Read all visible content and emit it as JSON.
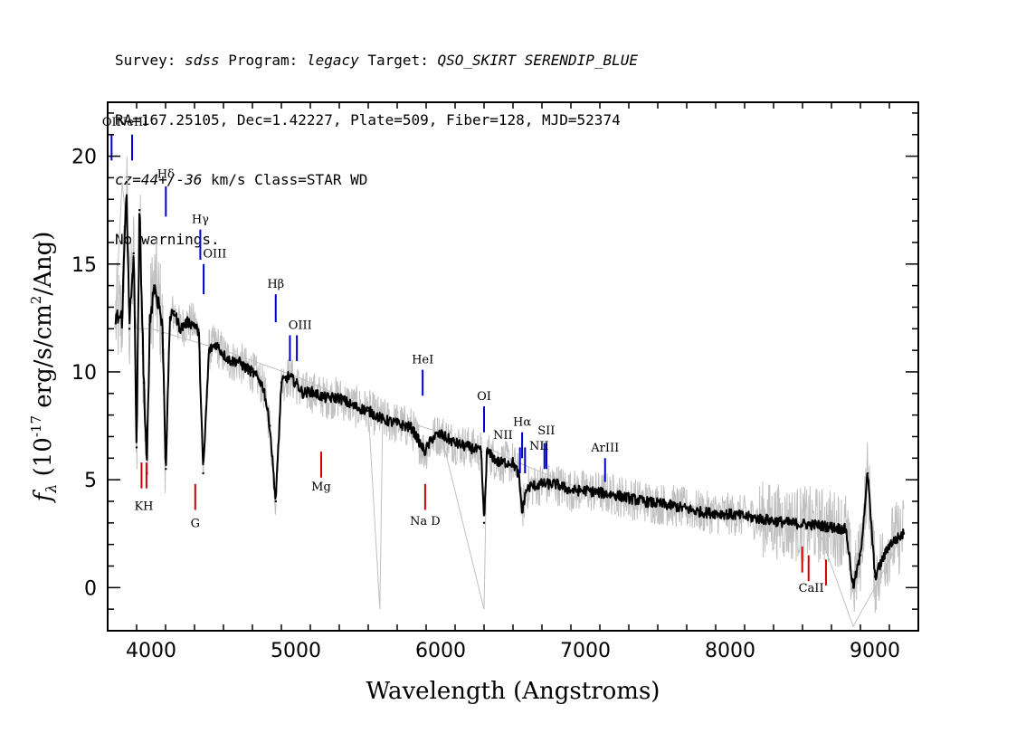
{
  "header": {
    "line1": {
      "survey_label": "Survey:",
      "survey": "sdss",
      "program_label": "Program:",
      "program": "legacy",
      "target_label": "Target:",
      "target": "QSO_SKIRT SERENDIP_BLUE"
    },
    "line2": "RA=167.25105, Dec=1.42227, Plate=509, Fiber=128, MJD=52374",
    "line3": {
      "cz": "cz=44+/-36",
      "rest": " km/s Class=STAR WD"
    },
    "line4": "No warnings."
  },
  "chart_data": {
    "type": "line",
    "xlabel": "Wavelength (Angstroms)",
    "ylabel": "f_λ (10^-17 erg/s/cm^2/Ang)",
    "xlim": [
      3700,
      9300
    ],
    "ylim": [
      -2,
      22.5
    ],
    "x_ticks": [
      4000,
      5000,
      6000,
      7000,
      8000,
      9000
    ],
    "y_ticks": [
      0,
      5,
      10,
      15,
      20
    ],
    "colors": {
      "spectrum": "#000000",
      "noise": "#c0c0c0",
      "emission": "#0000cc",
      "absorption": "#cc0000"
    },
    "series": [
      {
        "style": "thick-black",
        "x": [
          3800,
          3830,
          3850,
          3880,
          3900,
          3920,
          3950,
          3970,
          3990,
          4020,
          4060,
          4080,
          4102,
          4130,
          4160,
          4200,
          4250,
          4300,
          4330,
          4360,
          4400,
          4450,
          4500,
          4550,
          4600,
          4650,
          4700,
          4750,
          4780,
          4820,
          4861,
          4900,
          4950,
          5000,
          5050,
          5100,
          5200,
          5300,
          5400,
          5500,
          5600,
          5700,
          5800,
          5890,
          5950,
          6000,
          6100,
          6200,
          6280,
          6300,
          6320,
          6400,
          6500,
          6540,
          6563,
          6590,
          6620,
          6700,
          6800,
          6900,
          7000,
          7200,
          7400,
          7600,
          7800,
          8000,
          8200,
          8400,
          8600,
          8800,
          8850,
          8900,
          8950,
          9000,
          9100,
          9200
        ],
        "y": [
          12.5,
          18.8,
          12.0,
          15.5,
          6.5,
          17.5,
          9.5,
          5.3,
          12.2,
          14.0,
          13.0,
          11.8,
          5.5,
          12.5,
          12.8,
          12.0,
          12.3,
          12.2,
          11.8,
          5.3,
          11.0,
          11.3,
          10.8,
          10.5,
          10.5,
          10.2,
          10.0,
          9.6,
          9.2,
          7.5,
          4.0,
          9.5,
          9.8,
          9.5,
          9.0,
          9.1,
          8.8,
          8.8,
          8.4,
          8.2,
          7.8,
          7.6,
          7.4,
          6.3,
          7.0,
          7.1,
          6.7,
          6.5,
          6.3,
          3.0,
          6.3,
          5.8,
          5.8,
          5.2,
          3.5,
          4.5,
          4.7,
          4.8,
          4.8,
          4.5,
          4.5,
          4.3,
          4.0,
          3.8,
          3.5,
          3.4,
          3.2,
          3.0,
          2.9,
          2.7,
          0.0,
          1.5,
          5.3,
          0.5,
          2.0,
          2.5
        ]
      },
      {
        "style": "thin-gray-noise",
        "x": [
          3750,
          3800,
          3900,
          4000,
          4500,
          5000,
          5500,
          5580,
          5600,
          6000,
          6300,
          6320,
          6500,
          7000,
          8000,
          8600,
          8850,
          9000,
          9200
        ],
        "y": [
          12.0,
          18.8,
          12.0,
          12.0,
          11.0,
          9.8,
          8.3,
          -1.0,
          8.0,
          7.2,
          -1.0,
          6.5,
          5.9,
          4.5,
          3.5,
          2.9,
          -1.8,
          0.0,
          2.6
        ]
      }
    ],
    "emission_lines": [
      {
        "label": "OII",
        "wavelength": 3727,
        "y_top": 21.0,
        "y_bottom": 19.8
      },
      {
        "label": "NeIII",
        "wavelength": 3869,
        "y_top": 21.0,
        "y_bottom": 19.8
      },
      {
        "label": "Hδ",
        "wavelength": 4102,
        "y_top": 18.6,
        "y_bottom": 17.2
      },
      {
        "label": "Hγ",
        "wavelength": 4340,
        "y_top": 16.6,
        "y_bottom": 15.2
      },
      {
        "label": "OIII",
        "wavelength": 4363,
        "y_top": 15.0,
        "y_bottom": 13.6
      },
      {
        "label": "Hβ",
        "wavelength": 4861,
        "y_top": 13.6,
        "y_bottom": 12.3
      },
      {
        "label": "OIII",
        "wavelength": 4959,
        "y_top": 11.7,
        "y_bottom": 10.5
      },
      {
        "label": "OIII",
        "wavelength": 5007,
        "y_top": 11.7,
        "y_bottom": 10.5
      },
      {
        "label": "HeI",
        "wavelength": 5876,
        "y_top": 10.1,
        "y_bottom": 8.9
      },
      {
        "label": "OI",
        "wavelength": 6300,
        "y_top": 8.4,
        "y_bottom": 7.2
      },
      {
        "label": "NII",
        "wavelength": 6548,
        "y_top": 6.5,
        "y_bottom": 5.3
      },
      {
        "label": "Hα",
        "wavelength": 6563,
        "y_top": 7.2,
        "y_bottom": 6.0
      },
      {
        "label": "NII",
        "wavelength": 6583,
        "y_top": 6.5,
        "y_bottom": 5.3
      },
      {
        "label": "SII",
        "wavelength": 6717,
        "y_top": 6.7,
        "y_bottom": 5.5
      },
      {
        "label": "SII",
        "wavelength": 6731,
        "y_top": 6.7,
        "y_bottom": 5.5
      },
      {
        "label": "ArIII",
        "wavelength": 7136,
        "y_top": 6.0,
        "y_bottom": 4.9
      }
    ],
    "absorption_lines": [
      {
        "label": "K",
        "wavelength": 3934,
        "y_top": 5.8,
        "y_bottom": 4.6
      },
      {
        "label": "H",
        "wavelength": 3968,
        "y_top": 5.8,
        "y_bottom": 4.6
      },
      {
        "label": "G",
        "wavelength": 4305,
        "y_top": 4.8,
        "y_bottom": 3.6
      },
      {
        "label": "Mg",
        "wavelength": 5175,
        "y_top": 6.3,
        "y_bottom": 5.1
      },
      {
        "label": "Na D",
        "wavelength": 5893,
        "y_top": 4.8,
        "y_bottom": 3.6
      },
      {
        "label": "CaII",
        "wavelength": 8498,
        "y_top": 1.9,
        "y_bottom": 0.7
      },
      {
        "label": "CaII",
        "wavelength": 8542,
        "y_top": 1.5,
        "y_bottom": 0.3
      },
      {
        "label": "CaII",
        "wavelength": 8662,
        "y_top": 1.3,
        "y_bottom": 0.1
      }
    ],
    "line_labels": [
      {
        "text": "OII",
        "wavelength": 3727,
        "y": 21.4,
        "kind": "emission"
      },
      {
        "text": "NeIII",
        "wavelength": 3869,
        "y": 21.4,
        "kind": "emission"
      },
      {
        "text": "Hδ",
        "wavelength": 4102,
        "y": 19.0,
        "kind": "emission"
      },
      {
        "text": "Hγ",
        "wavelength": 4340,
        "y": 16.9,
        "kind": "emission"
      },
      {
        "text": "OIII",
        "wavelength": 4440,
        "y": 15.3,
        "kind": "emission"
      },
      {
        "text": "Hβ",
        "wavelength": 4861,
        "y": 13.9,
        "kind": "emission"
      },
      {
        "text": "OIII",
        "wavelength": 5030,
        "y": 12.0,
        "kind": "emission"
      },
      {
        "text": "HeI",
        "wavelength": 5876,
        "y": 10.4,
        "kind": "emission"
      },
      {
        "text": "OI",
        "wavelength": 6300,
        "y": 8.7,
        "kind": "emission"
      },
      {
        "text": "NII",
        "wavelength": 6430,
        "y": 6.9,
        "kind": "emission"
      },
      {
        "text": "Hα",
        "wavelength": 6563,
        "y": 7.5,
        "kind": "emission"
      },
      {
        "text": "SII",
        "wavelength": 6730,
        "y": 7.1,
        "kind": "emission"
      },
      {
        "text": "NII",
        "wavelength": 6680,
        "y": 6.4,
        "kind": "emission"
      },
      {
        "text": "ArIII",
        "wavelength": 7136,
        "y": 6.3,
        "kind": "emission"
      },
      {
        "text": "KH",
        "wavelength": 3950,
        "y": 3.6,
        "kind": "absorption"
      },
      {
        "text": "G",
        "wavelength": 4305,
        "y": 2.8,
        "kind": "absorption"
      },
      {
        "text": "Mg",
        "wavelength": 5175,
        "y": 4.5,
        "kind": "absorption"
      },
      {
        "text": "Na D",
        "wavelength": 5893,
        "y": 2.9,
        "kind": "absorption"
      },
      {
        "text": "CaII",
        "wavelength": 8560,
        "y": -0.2,
        "kind": "absorption"
      }
    ]
  }
}
